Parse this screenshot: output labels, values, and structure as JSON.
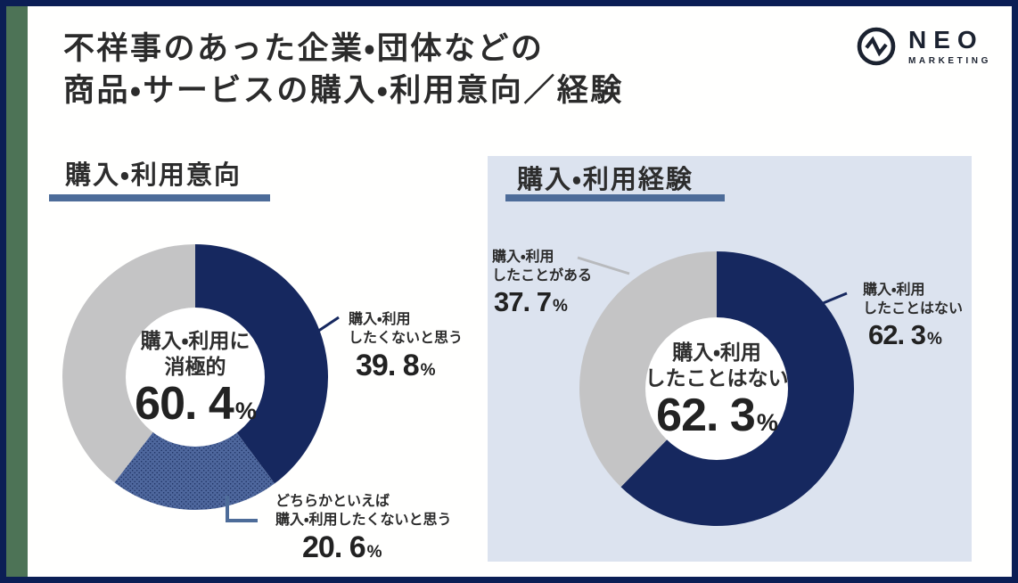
{
  "colors": {
    "navy": "#16285f",
    "gray": "#c4c4c5",
    "steel": "#4e679d",
    "steel_dot": "#1a2d5e",
    "panel_bg": "#dce3ef",
    "slate_underline": "#4d6c99",
    "green_bar": "#4d7356",
    "frame": "#0b1e55",
    "leader_gray": "#b8babd"
  },
  "header": {
    "title_line1": "不祥事のあった企業・団体などの",
    "title_line2": "商品・サービスの購入・利用意向／経験"
  },
  "logo": {
    "name": "NEO",
    "sub": "MARKETING"
  },
  "chart_data": [
    {
      "type": "donut",
      "title": "購入・利用意向",
      "center": {
        "line1": "購入・利用に",
        "line2": "消極的",
        "value": 60.4,
        "value_text": "60. 4",
        "unit": "%"
      },
      "segments": [
        {
          "value": 39.8,
          "color": "navy",
          "dotted": false,
          "callout": {
            "line1": "購入・利用",
            "line2": "したくないと思う",
            "value_text": "39. 8",
            "unit": "%"
          }
        },
        {
          "value": 20.6,
          "color": "steel",
          "dotted": true,
          "callout": {
            "line1": "どちらかといえば",
            "line2": "購入・利用したくないと思う",
            "value_text": "20. 6",
            "unit": "%"
          }
        },
        {
          "value": 39.6,
          "color": "gray",
          "dotted": false
        }
      ]
    },
    {
      "type": "donut",
      "title": "購入・利用経験",
      "center": {
        "line1": "購入・利用",
        "line2": "したことはない",
        "value": 62.3,
        "value_text": "62. 3",
        "unit": "%"
      },
      "segments": [
        {
          "value": 62.3,
          "color": "navy",
          "dotted": false,
          "callout": {
            "line1": "購入・利用",
            "line2": "したことはない",
            "value_text": "62. 3",
            "unit": "%"
          }
        },
        {
          "value": 37.7,
          "color": "gray",
          "dotted": false,
          "callout": {
            "line1": "購入・利用",
            "line2": "したことがある",
            "value_text": "37. 7",
            "unit": "%"
          }
        }
      ]
    }
  ]
}
